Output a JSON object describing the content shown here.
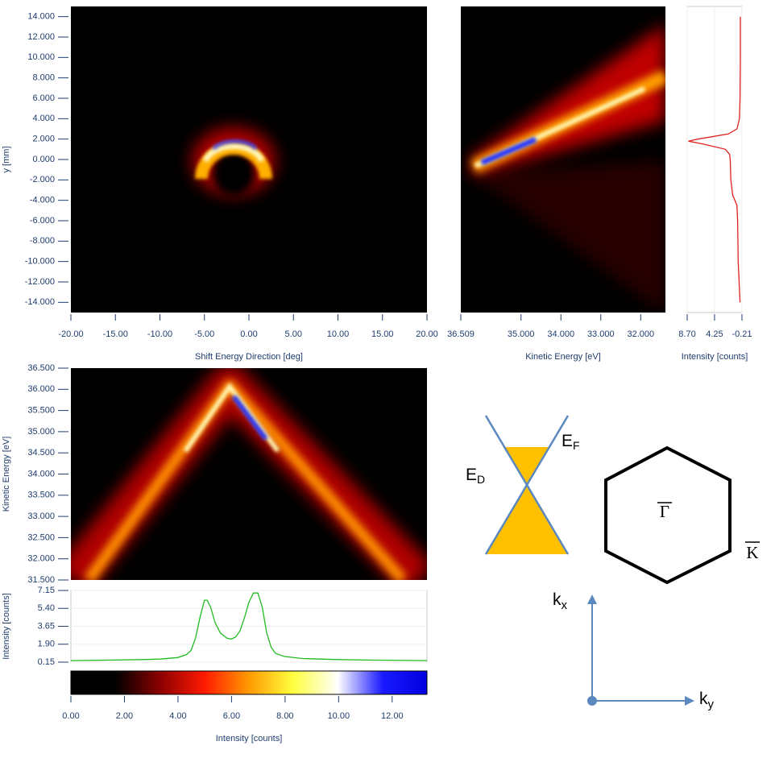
{
  "chart_data": [
    {
      "type": "heatmap",
      "xlabel": "Shift Energy Direction [deg]",
      "ylabel": "y [mm]",
      "xlim": [
        -20,
        20
      ],
      "ylim": [
        -15,
        15
      ],
      "xticks": [
        {
          "value": -20,
          "label": "-20.00"
        },
        {
          "value": -15,
          "label": "-15.00"
        },
        {
          "value": -10,
          "label": "-10.00"
        },
        {
          "value": -5,
          "label": "-5.00"
        },
        {
          "value": 0,
          "label": "0.00"
        },
        {
          "value": 5,
          "label": "5.00"
        },
        {
          "value": 10,
          "label": "10.00"
        },
        {
          "value": 15,
          "label": "15.00"
        },
        {
          "value": 20,
          "label": "20.00"
        }
      ],
      "yticks": [
        {
          "value": 14,
          "label": "14.000"
        },
        {
          "value": 12,
          "label": "12.000"
        },
        {
          "value": 10,
          "label": "10.000"
        },
        {
          "value": 8,
          "label": "8.000"
        },
        {
          "value": 6,
          "label": "6.000"
        },
        {
          "value": 4,
          "label": "4.000"
        },
        {
          "value": 2,
          "label": "2.000"
        },
        {
          "value": 0,
          "label": "0.000"
        },
        {
          "value": -2,
          "label": "-2.000"
        },
        {
          "value": -4,
          "label": "-4.000"
        },
        {
          "value": -6,
          "label": "-6.000"
        },
        {
          "value": -8,
          "label": "-8.000"
        },
        {
          "value": -10,
          "label": "-10.000"
        },
        {
          "value": -12,
          "label": "-12.000"
        },
        {
          "value": -14,
          "label": "-14.000"
        }
      ]
    },
    {
      "type": "heatmap",
      "xlabel": "Kinetic Energy [eV]",
      "xlim": [
        36.509,
        31.38
      ],
      "xticks": [
        36.509,
        {
          "value": 35,
          "label": "35.000"
        },
        {
          "value": 34,
          "label": "34.000"
        },
        {
          "value": 33,
          "label": "33.000"
        },
        {
          "value": 32,
          "label": "32.000"
        }
      ]
    },
    {
      "type": "profile",
      "xlabel": "Intensity [counts]",
      "xlim": [
        8.7,
        -0.21
      ],
      "ylim": [
        -15,
        15
      ],
      "grid": true,
      "xticks": [
        {
          "value": 8.7,
          "label": "8.70"
        },
        4.25,
        -0.21
      ],
      "series": [
        {
          "color": "#e02020",
          "y": [
            14,
            10,
            6,
            4,
            3,
            2.5,
            2,
            1.8,
            1.5,
            1,
            0.5,
            0,
            -2,
            -3.5,
            -4.5,
            -6,
            -10,
            -14
          ],
          "values": [
            0.05,
            0.05,
            0.1,
            0.2,
            0.6,
            2,
            7,
            8.5,
            6,
            2.5,
            1.8,
            1.7,
            1.6,
            1.3,
            0.6,
            0.5,
            0.4,
            0.1
          ]
        }
      ]
    },
    {
      "type": "heatmap",
      "ylabel": "Kinetic Energy [eV]",
      "ylim": [
        31.5,
        36.5
      ],
      "yticks": [
        {
          "value": 36.5,
          "label": "36.500"
        },
        {
          "value": 36,
          "label": "36.000"
        },
        {
          "value": 35.5,
          "label": "35.500"
        },
        {
          "value": 35,
          "label": "35.000"
        },
        {
          "value": 34.5,
          "label": "34.500"
        },
        {
          "value": 34,
          "label": "34.000"
        },
        {
          "value": 33.5,
          "label": "33.500"
        },
        {
          "value": 33,
          "label": "33.000"
        },
        {
          "value": 32.5,
          "label": "32.500"
        },
        {
          "value": 32,
          "label": "32.000"
        },
        {
          "value": 31.5,
          "label": "31.500"
        }
      ]
    },
    {
      "type": "line",
      "ylabel": "Intensity [counts]",
      "xlim": [
        -20,
        20
      ],
      "ylim": [
        0.15,
        7.15
      ],
      "grid": true,
      "yticks": [
        7.15,
        {
          "value": 5.4,
          "label": "5.40"
        },
        3.65,
        {
          "value": 1.9,
          "label": "1.90"
        },
        0.15
      ],
      "series": [
        {
          "color": "#22bb22",
          "x": [
            -20,
            -16,
            -12,
            -10,
            -8,
            -7,
            -6.5,
            -6,
            -5.5,
            -5,
            -4.7,
            -4.3,
            -3.8,
            -3.2,
            -2.5,
            -2,
            -1.5,
            -1,
            -0.5,
            0,
            0.5,
            1,
            1.5,
            2,
            2.5,
            3,
            4,
            6,
            10,
            14,
            20
          ],
          "values": [
            0.3,
            0.35,
            0.4,
            0.45,
            0.6,
            0.9,
            1.3,
            2.5,
            4.5,
            6.2,
            6.2,
            5.5,
            4,
            3,
            2.5,
            2.4,
            2.6,
            3.2,
            4.5,
            6,
            6.9,
            6.9,
            5.5,
            3,
            1.6,
            1,
            0.7,
            0.5,
            0.4,
            0.35,
            0.3
          ]
        }
      ]
    },
    {
      "type": "colorbar",
      "xlabel": "Intensity [counts]",
      "xlim": [
        0,
        13.3
      ],
      "colors": [
        "#000000",
        "#000000",
        "#8b0000",
        "#ff1a00",
        "#ff9a00",
        "#ffff40",
        "#ffffff",
        "#1a1aff",
        "#0000e0"
      ],
      "xticks": [
        {
          "value": 0,
          "label": "0.00"
        },
        {
          "value": 2,
          "label": "2.00"
        },
        {
          "value": 4,
          "label": "4.00"
        },
        {
          "value": 6,
          "label": "6.00"
        },
        {
          "value": 8,
          "label": "8.00"
        },
        {
          "value": 10,
          "label": "10.00"
        },
        {
          "value": 12,
          "label": "12.00"
        }
      ]
    }
  ],
  "diagram": {
    "fermi": {
      "main": "E",
      "sub": "F"
    },
    "dirac": {
      "main": "E",
      "sub": "D"
    },
    "gamma": "Γ",
    "k_point": "K",
    "kx": {
      "main": "k",
      "sub": "x"
    },
    "ky": {
      "main": "k",
      "sub": "y"
    }
  }
}
